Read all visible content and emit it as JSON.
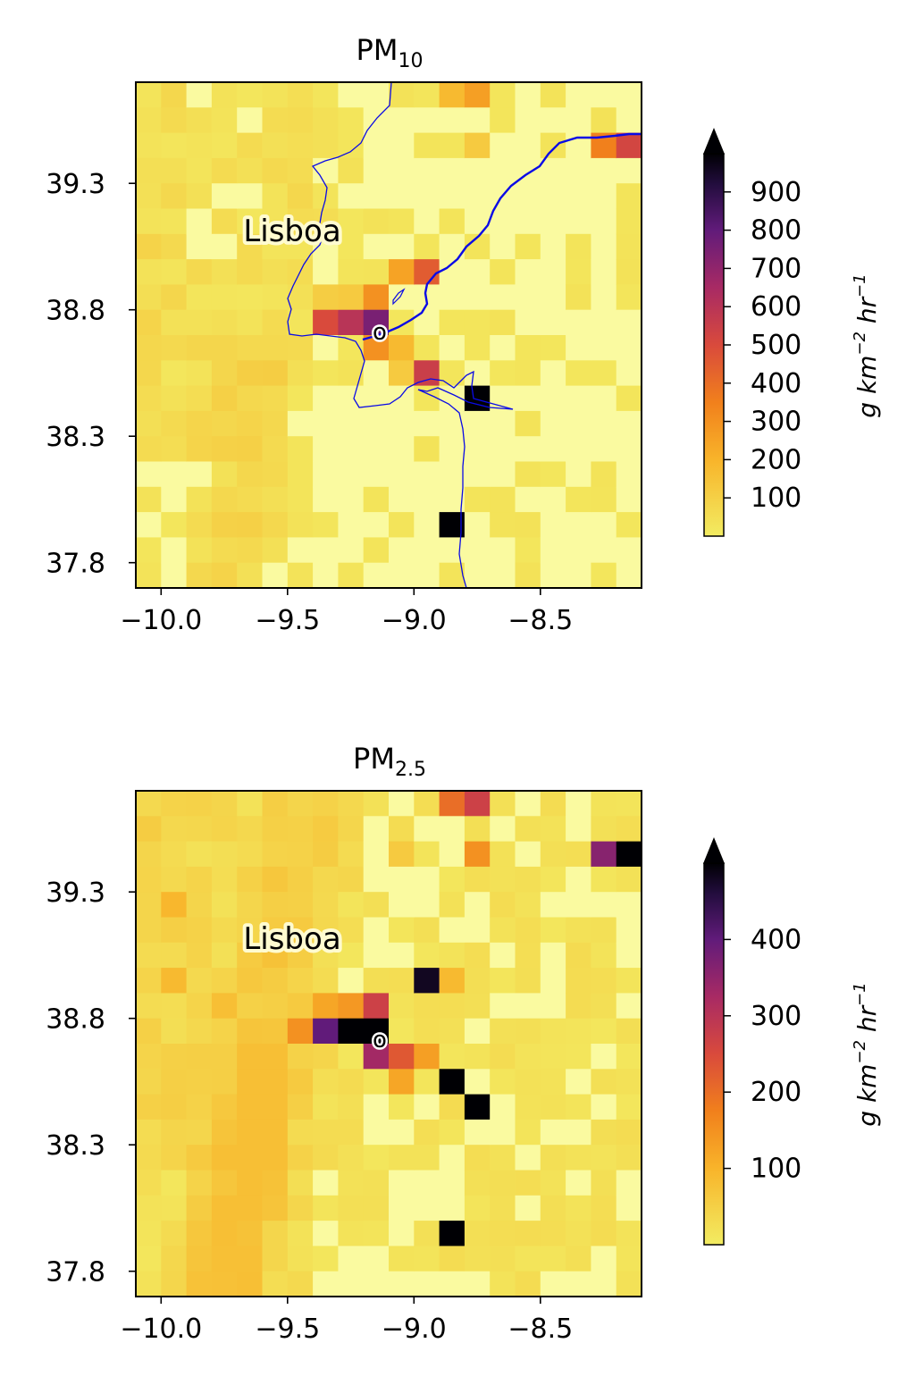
{
  "chart_data": [
    {
      "type": "heatmap",
      "title_main": "PM",
      "title_sub": "10",
      "xticks": [
        -10.0,
        -9.5,
        -9.0,
        -8.5
      ],
      "xtick_labels": [
        "−10.0",
        "−9.5",
        "−9.0",
        "−8.5"
      ],
      "yticks": [
        39.3,
        38.8,
        38.3,
        37.8
      ],
      "ytick_labels": [
        "39.3",
        "38.8",
        "38.3",
        "37.8"
      ],
      "xlim": [
        -10.1,
        -8.1
      ],
      "ylim": [
        37.7,
        39.7
      ],
      "city_label": "Lisboa",
      "marker_label": "o",
      "colorbar": {
        "min": 0,
        "max": 1000,
        "ticks": [
          100,
          200,
          300,
          400,
          500,
          600,
          700,
          800,
          900
        ],
        "label_main": "g km",
        "label_exp1": "−2",
        "label_mid": " hr",
        "label_exp2": "−1",
        "extend": "max"
      },
      "hotspots": [
        {
          "lon": -9.25,
          "lat": 38.75,
          "value": 600
        },
        {
          "lon": -9.35,
          "lat": 38.75,
          "value": 500
        },
        {
          "lon": -9.15,
          "lat": 38.75,
          "value": 750
        },
        {
          "lon": -9.15,
          "lat": 38.85,
          "value": 300
        },
        {
          "lon": -9.25,
          "lat": 38.85,
          "value": 120
        },
        {
          "lon": -9.35,
          "lat": 38.85,
          "value": 110
        },
        {
          "lon": -9.15,
          "lat": 38.65,
          "value": 300
        },
        {
          "lon": -9.05,
          "lat": 38.65,
          "value": 180
        },
        {
          "lon": -9.05,
          "lat": 38.55,
          "value": 120
        },
        {
          "lon": -8.95,
          "lat": 38.55,
          "value": 550
        },
        {
          "lon": -8.95,
          "lat": 38.95,
          "value": 450
        },
        {
          "lon": -9.05,
          "lat": 38.95,
          "value": 250
        },
        {
          "lon": -8.75,
          "lat": 38.45,
          "value": 1000
        },
        {
          "lon": -8.85,
          "lat": 37.95,
          "value": 1000
        },
        {
          "lon": -8.85,
          "lat": 39.65,
          "value": 180
        },
        {
          "lon": -8.75,
          "lat": 39.65,
          "value": 260
        },
        {
          "lon": -8.75,
          "lat": 39.45,
          "value": 120
        },
        {
          "lon": -8.25,
          "lat": 39.45,
          "value": 350
        },
        {
          "lon": -8.15,
          "lat": 39.45,
          "value": 520
        }
      ]
    },
    {
      "type": "heatmap",
      "title_main": "PM",
      "title_sub": "2.5",
      "xticks": [
        -10.0,
        -9.5,
        -9.0,
        -8.5
      ],
      "xtick_labels": [
        "−10.0",
        "−9.5",
        "−9.0",
        "−8.5"
      ],
      "yticks": [
        39.3,
        38.8,
        38.3,
        37.8
      ],
      "ytick_labels": [
        "39.3",
        "38.8",
        "38.3",
        "37.8"
      ],
      "xlim": [
        -10.1,
        -8.1
      ],
      "ylim": [
        37.7,
        39.7
      ],
      "city_label": "Lisboa",
      "marker_label": "o",
      "colorbar": {
        "min": 0,
        "max": 500,
        "ticks": [
          100,
          200,
          300,
          400
        ],
        "label_main": "g km",
        "label_exp1": "−2",
        "label_mid": " hr",
        "label_exp2": "−1",
        "extend": "max"
      },
      "hotspots": [
        {
          "lon": -9.25,
          "lat": 38.75,
          "value": 500
        },
        {
          "lon": -9.15,
          "lat": 38.75,
          "value": 500
        },
        {
          "lon": -9.35,
          "lat": 38.75,
          "value": 400
        },
        {
          "lon": -9.45,
          "lat": 38.75,
          "value": 150
        },
        {
          "lon": -9.15,
          "lat": 38.85,
          "value": 270
        },
        {
          "lon": -9.25,
          "lat": 38.85,
          "value": 140
        },
        {
          "lon": -9.35,
          "lat": 38.85,
          "value": 120
        },
        {
          "lon": -9.15,
          "lat": 38.65,
          "value": 330
        },
        {
          "lon": -9.05,
          "lat": 38.65,
          "value": 230
        },
        {
          "lon": -8.95,
          "lat": 38.65,
          "value": 130
        },
        {
          "lon": -9.05,
          "lat": 38.55,
          "value": 120
        },
        {
          "lon": -8.95,
          "lat": 38.95,
          "value": 480
        },
        {
          "lon": -8.85,
          "lat": 38.95,
          "value": 90
        },
        {
          "lon": -8.85,
          "lat": 38.55,
          "value": 500
        },
        {
          "lon": -8.75,
          "lat": 38.45,
          "value": 500
        },
        {
          "lon": -8.85,
          "lat": 37.95,
          "value": 500
        },
        {
          "lon": -8.85,
          "lat": 39.65,
          "value": 200
        },
        {
          "lon": -8.75,
          "lat": 39.65,
          "value": 270
        },
        {
          "lon": -8.75,
          "lat": 39.45,
          "value": 150
        },
        {
          "lon": -8.25,
          "lat": 39.45,
          "value": 360
        },
        {
          "lon": -8.15,
          "lat": 39.45,
          "value": 500
        },
        {
          "lon": -9.05,
          "lat": 39.45,
          "value": 60
        },
        {
          "lon": -9.95,
          "lat": 39.25,
          "value": 95
        },
        {
          "lon": -9.95,
          "lat": 38.95,
          "value": 90
        },
        {
          "lon": -9.75,
          "lat": 38.85,
          "value": 80
        }
      ]
    }
  ]
}
